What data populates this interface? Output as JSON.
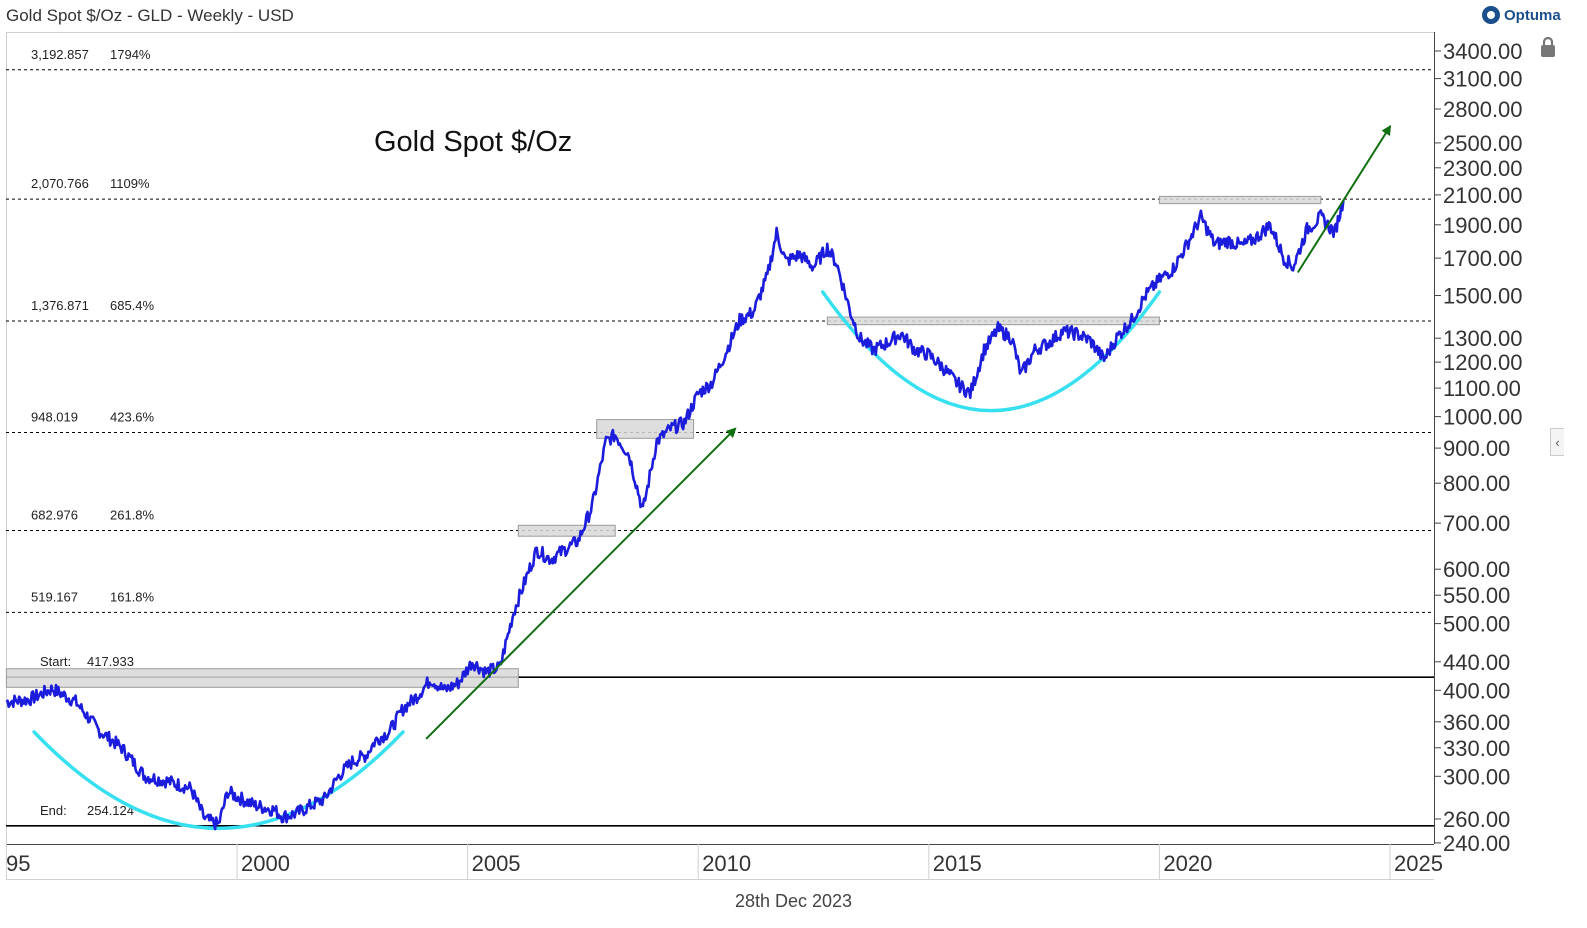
{
  "header": {
    "title": "Gold Spot $/Oz - GLD - Weekly - USD",
    "brand": "Optuma"
  },
  "footer": {
    "date": "28th Dec 2023"
  },
  "colors": {
    "price_line": "#1c1cdc",
    "cup_arc": "#37e0f0",
    "trend_arrow": "#107010",
    "box_fill": "#d8d8d8",
    "level_line": "#000000"
  },
  "icons": {
    "lock": "lock-icon",
    "collapse": "chevron-left-icon",
    "brand_logo": "optuma-logo"
  },
  "chart_data": {
    "type": "line",
    "title": "Gold Spot $/Oz",
    "scale": "log",
    "ylim": [
      240,
      3600
    ],
    "xlim": [
      1995,
      2026.3
    ],
    "grid": false,
    "y_ticks": [
      "3400.00",
      "3100.00",
      "2800.00",
      "2500.00",
      "2300.00",
      "2100.00",
      "1900.00",
      "1700.00",
      "1500.00",
      "1300.00",
      "1200.00",
      "1100.00",
      "1000.00",
      "900.00",
      "800.00",
      "700.00",
      "600.00",
      "550.00",
      "500.00",
      "440.00",
      "400.00",
      "360.00",
      "330.00",
      "300.00",
      "260.00",
      "240.00"
    ],
    "x_ticks": [
      "95",
      "2000",
      "2005",
      "2010",
      "2015",
      "2020",
      "2025"
    ],
    "fib_levels": [
      {
        "value": "3,192.857",
        "pct": "1794%",
        "style": "dashed"
      },
      {
        "value": "2,070.766",
        "pct": "1109%",
        "style": "dashed"
      },
      {
        "value": "1,376.871",
        "pct": "685.4%",
        "style": "dashed"
      },
      {
        "value": "948.019",
        "pct": "423.6%",
        "style": "dashed"
      },
      {
        "value": "682.976",
        "pct": "261.8%",
        "style": "dashed"
      },
      {
        "value": "519.167",
        "pct": "161.8%",
        "style": "dashed"
      },
      {
        "label": "Start:",
        "value": "417.933",
        "style": "solid"
      },
      {
        "label": "End:",
        "value": "254.124",
        "style": "solid"
      }
    ],
    "series": [
      {
        "x": [
          1995.0,
          1995.5,
          1996.0,
          1996.5,
          1997.0,
          1997.5,
          1998.0,
          1998.5,
          1999.0,
          1999.3,
          1999.6,
          1999.8,
          2000.0,
          2000.4,
          2000.8,
          2001.0,
          2001.3,
          2001.6,
          2001.9,
          2002.2,
          2002.5,
          2002.8,
          2003.0,
          2003.3,
          2003.6,
          2003.9,
          2004.2,
          2004.5,
          2004.8,
          2005.1,
          2005.4,
          2005.7,
          2006.0,
          2006.3,
          2006.5,
          2006.8,
          2007.1,
          2007.4,
          2007.7,
          2008.0,
          2008.2,
          2008.5,
          2008.8,
          2009.1,
          2009.4,
          2009.7,
          2010.0,
          2010.3,
          2010.6,
          2010.9,
          2011.2,
          2011.5,
          2011.7,
          2011.9,
          2012.2,
          2012.5,
          2012.8,
          2013.0,
          2013.3,
          2013.5,
          2013.8,
          2014.1,
          2014.4,
          2014.7,
          2015.0,
          2015.3,
          2015.6,
          2015.9,
          2016.2,
          2016.5,
          2016.8,
          2017.0,
          2017.3,
          2017.6,
          2017.9,
          2018.2,
          2018.5,
          2018.8,
          2019.1,
          2019.4,
          2019.7,
          2020.0,
          2020.3,
          2020.6,
          2020.9,
          2021.2,
          2021.5,
          2021.8,
          2022.1,
          2022.4,
          2022.7,
          2022.9,
          2023.2,
          2023.5,
          2023.8,
          2023.99
        ],
        "values": [
          385,
          388,
          402,
          385,
          350,
          330,
          300,
          295,
          288,
          260,
          255,
          285,
          280,
          272,
          268,
          262,
          265,
          272,
          278,
          300,
          315,
          322,
          338,
          348,
          376,
          392,
          415,
          400,
          410,
          440,
          425,
          432,
          520,
          590,
          640,
          620,
          640,
          660,
          740,
          920,
          940,
          880,
          730,
          920,
          960,
          980,
          1080,
          1120,
          1240,
          1380,
          1420,
          1600,
          1850,
          1680,
          1720,
          1650,
          1760,
          1670,
          1420,
          1300,
          1250,
          1280,
          1320,
          1250,
          1230,
          1180,
          1120,
          1080,
          1250,
          1340,
          1300,
          1150,
          1250,
          1280,
          1330,
          1320,
          1290,
          1210,
          1310,
          1380,
          1500,
          1580,
          1640,
          1780,
          1950,
          1780,
          1800,
          1770,
          1820,
          1900,
          1700,
          1650,
          1870,
          1950,
          1850,
          2062
        ]
      }
    ],
    "annotations": [
      {
        "type": "arc",
        "from": 1995.6,
        "to": 2003.6,
        "low_value": 252
      },
      {
        "type": "arc",
        "from": 2012.7,
        "to": 2020.0,
        "low_value": 1020
      },
      {
        "type": "arrow",
        "from": [
          2004.1,
          340
        ],
        "to": [
          2010.8,
          960
        ]
      },
      {
        "type": "arrow",
        "from": [
          2023.0,
          1620
        ],
        "to": [
          2025.0,
          2640
        ]
      },
      {
        "type": "box",
        "x": [
          1995.0,
          2006.1
        ],
        "y": [
          404,
          430
        ]
      },
      {
        "type": "box",
        "x": [
          2006.1,
          2008.2
        ],
        "y": [
          670,
          695
        ]
      },
      {
        "type": "box",
        "x": [
          2007.8,
          2009.9
        ],
        "y": [
          930,
          990
        ]
      },
      {
        "type": "box",
        "x": [
          2012.8,
          2020.0
        ],
        "y": [
          1360,
          1395
        ]
      },
      {
        "type": "box",
        "x": [
          2020.0,
          2023.5
        ],
        "y": [
          2040,
          2090
        ]
      }
    ]
  }
}
